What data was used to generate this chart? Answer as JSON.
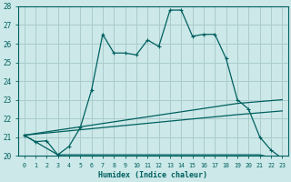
{
  "xlabel": "Humidex (Indice chaleur)",
  "bg_color": "#cce8e8",
  "grid_color": "#aacccc",
  "line_color": "#006060",
  "xlim": [
    -0.5,
    23.5
  ],
  "ylim": [
    20,
    28
  ],
  "yticks": [
    20,
    21,
    22,
    23,
    24,
    25,
    26,
    27,
    28
  ],
  "xticks": [
    0,
    1,
    2,
    3,
    4,
    5,
    6,
    7,
    8,
    9,
    10,
    11,
    12,
    13,
    14,
    15,
    16,
    17,
    18,
    19,
    20,
    21,
    22,
    23
  ],
  "line1_x": [
    0,
    1,
    2,
    3,
    4,
    5,
    6,
    7,
    8,
    9,
    10,
    11,
    12,
    13,
    14,
    15,
    16,
    17,
    18,
    19,
    20,
    21,
    22,
    23
  ],
  "line1_y": [
    21.1,
    20.75,
    20.8,
    20.05,
    20.5,
    21.5,
    23.5,
    26.5,
    25.5,
    25.5,
    25.4,
    26.2,
    25.85,
    27.8,
    27.8,
    26.4,
    26.5,
    26.5,
    25.2,
    23.0,
    22.5,
    21.0,
    20.3,
    19.85
  ],
  "line2_x": [
    0,
    3,
    21,
    22,
    23
  ],
  "line2_y": [
    21.1,
    20.05,
    20.05,
    19.9,
    19.85
  ],
  "line3_x": [
    0,
    19,
    23
  ],
  "line3_y": [
    21.1,
    22.2,
    22.4
  ],
  "line4_x": [
    0,
    19,
    23
  ],
  "line4_y": [
    21.1,
    22.8,
    23.0
  ]
}
